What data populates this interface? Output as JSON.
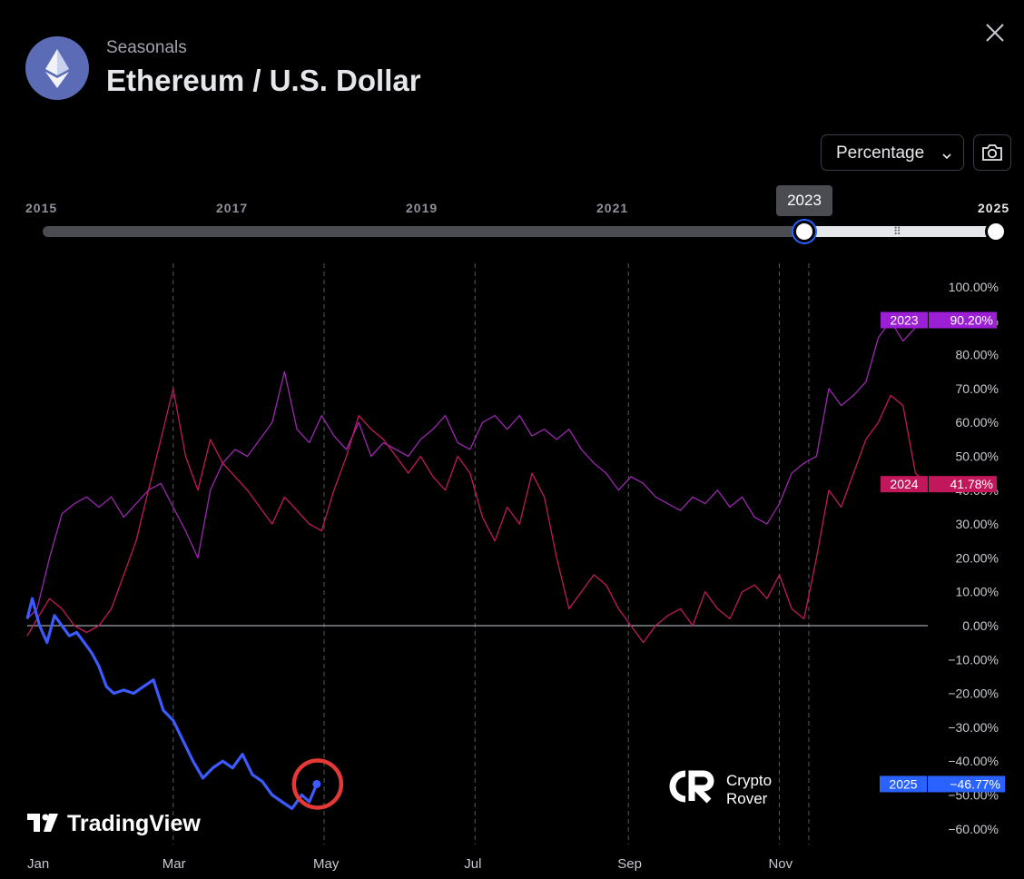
{
  "header": {
    "subtitle": "Seasonals",
    "title": "Ethereum / U.S. Dollar",
    "logo_icon": "ethereum-icon",
    "close_icon": "close-icon"
  },
  "controls": {
    "mode_value": "Percentage",
    "mode_icon": "chevron-down-icon",
    "snapshot_icon": "camera-icon"
  },
  "range_slider": {
    "year_labels": [
      "2015",
      "2017",
      "2019",
      "2021",
      "2025"
    ],
    "start_year": "2023",
    "end_year": "2025",
    "tooltip": "2023",
    "min_year": 2015,
    "max_year": 2025
  },
  "watermarks": {
    "tradingview": "TradingView",
    "crypto_rover_line1": "Crypto",
    "crypto_rover_line2": "Rover"
  },
  "chart_data": {
    "type": "line",
    "x_tick_labels": [
      "Jan",
      "Mar",
      "May",
      "Jul",
      "Sep",
      "Nov"
    ],
    "y_tick_labels": [
      "100.00%",
      "90.00%",
      "80.00%",
      "70.00%",
      "60.00%",
      "50.00%",
      "40.00%",
      "30.00%",
      "20.00%",
      "10.00%",
      "0.00%",
      "−10.00%",
      "−20.00%",
      "−30.00%",
      "−40.00%",
      "−50.00%",
      "−60.00%"
    ],
    "ylim": [
      -60,
      100
    ],
    "grid": "vertical dashed",
    "x_unit": "day of year",
    "series": [
      {
        "name": "2023",
        "color": "#9c27b0",
        "label_color": "#9c1fd6",
        "last_value_label": "90.20%",
        "x": [
          1,
          5,
          10,
          15,
          20,
          25,
          30,
          35,
          40,
          45,
          50,
          55,
          60,
          65,
          70,
          75,
          80,
          85,
          90,
          95,
          100,
          105,
          110,
          115,
          120,
          125,
          130,
          135,
          140,
          145,
          150,
          155,
          160,
          165,
          170,
          175,
          180,
          185,
          190,
          195,
          200,
          205,
          210,
          215,
          220,
          225,
          230,
          235,
          240,
          245,
          250,
          255,
          260,
          265,
          270,
          275,
          280,
          285,
          290,
          295,
          300,
          305,
          310,
          315,
          320,
          325,
          330,
          335,
          340,
          345,
          350,
          355,
          360,
          365
        ],
        "values": [
          2,
          5,
          20,
          33,
          36,
          38,
          35,
          38,
          32,
          36,
          40,
          42,
          35,
          28,
          20,
          40,
          48,
          52,
          50,
          55,
          60,
          75,
          58,
          54,
          62,
          56,
          52,
          60,
          50,
          54,
          52,
          50,
          55,
          58,
          62,
          54,
          52,
          60,
          62,
          58,
          62,
          56,
          58,
          55,
          58,
          52,
          48,
          45,
          40,
          44,
          42,
          38,
          36,
          34,
          38,
          36,
          40,
          35,
          38,
          32,
          30,
          36,
          45,
          48,
          50,
          70,
          65,
          68,
          72,
          85,
          90,
          84,
          88,
          90.2
        ]
      },
      {
        "name": "2024",
        "color": "#c2185b",
        "label_color": "#c2185b",
        "last_value_label": "41.78%",
        "x": [
          1,
          5,
          10,
          15,
          20,
          25,
          30,
          35,
          40,
          45,
          50,
          55,
          60,
          65,
          70,
          75,
          80,
          85,
          90,
          95,
          100,
          105,
          110,
          115,
          120,
          125,
          130,
          135,
          140,
          145,
          150,
          155,
          160,
          165,
          170,
          175,
          180,
          185,
          190,
          195,
          200,
          205,
          210,
          215,
          220,
          225,
          230,
          235,
          240,
          245,
          250,
          255,
          260,
          265,
          270,
          275,
          280,
          285,
          290,
          295,
          300,
          305,
          310,
          315,
          320,
          325,
          330,
          335,
          340,
          345,
          350,
          355,
          360,
          365
        ],
        "values": [
          -3,
          2,
          8,
          5,
          0,
          -2,
          0,
          5,
          15,
          25,
          40,
          55,
          70,
          50,
          40,
          55,
          48,
          44,
          40,
          35,
          30,
          38,
          34,
          30,
          28,
          40,
          50,
          62,
          58,
          55,
          50,
          45,
          50,
          44,
          40,
          50,
          45,
          32,
          25,
          35,
          30,
          45,
          38,
          20,
          5,
          10,
          15,
          12,
          5,
          0,
          -5,
          0,
          3,
          5,
          0,
          10,
          5,
          2,
          10,
          12,
          8,
          15,
          5,
          2,
          20,
          40,
          35,
          45,
          55,
          60,
          68,
          65,
          45,
          41.78
        ]
      },
      {
        "name": "2025",
        "color": "#3d5afe",
        "label_color": "#2962ff",
        "last_value_label": "−46.77%",
        "x": [
          1,
          3,
          6,
          9,
          12,
          15,
          18,
          21,
          24,
          27,
          30,
          33,
          36,
          40,
          44,
          48,
          52,
          56,
          60,
          64,
          68,
          72,
          76,
          80,
          84,
          88,
          92,
          96,
          100,
          104,
          108,
          112,
          115,
          118
        ],
        "values": [
          2,
          8,
          0,
          -5,
          3,
          0,
          -3,
          -2,
          -5,
          -8,
          -12,
          -18,
          -20,
          -19,
          -20,
          -18,
          -16,
          -25,
          -28,
          -34,
          -40,
          -45,
          -42,
          -40,
          -42,
          -38,
          -44,
          -46,
          -50,
          -52,
          -54,
          -50,
          -52,
          -46.77
        ]
      }
    ]
  }
}
